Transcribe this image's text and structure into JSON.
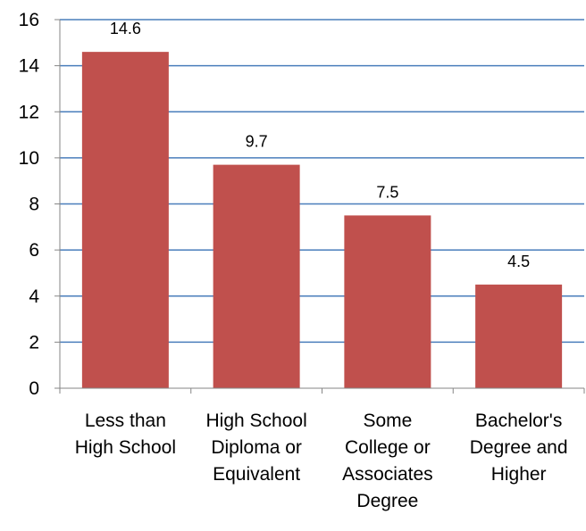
{
  "chart_data": {
    "type": "bar",
    "categories": [
      [
        "Less than",
        "High School"
      ],
      [
        "High School",
        "Diploma or",
        "Equivalent"
      ],
      [
        "Some",
        "College or",
        "Associates",
        "Degree"
      ],
      [
        "Bachelor's",
        "Degree and",
        "Higher"
      ]
    ],
    "values": [
      14.6,
      9.7,
      7.5,
      4.5
    ],
    "data_labels": [
      "14.6",
      "9.7",
      "7.5",
      "4.5"
    ],
    "ylim": [
      0,
      16
    ],
    "yticks": [
      0,
      2,
      4,
      6,
      8,
      10,
      12,
      14,
      16
    ],
    "grid": true,
    "legend": false,
    "colors": {
      "bar": "#C0504D",
      "grid": "#4A7EBB",
      "axis": "#868686"
    }
  }
}
